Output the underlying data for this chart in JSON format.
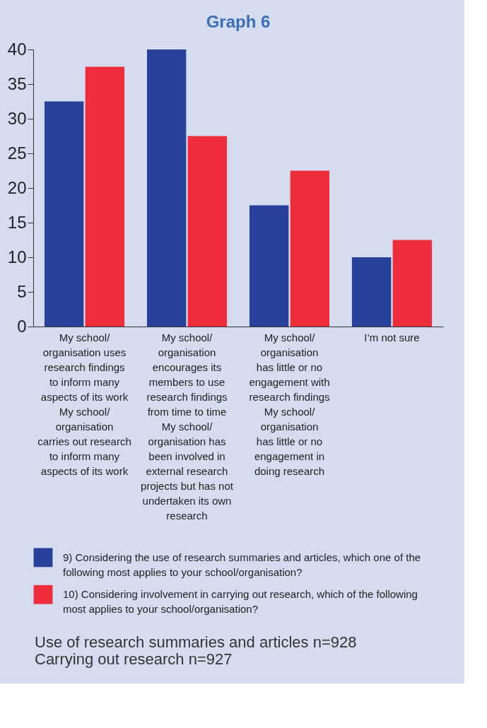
{
  "chart_data": {
    "type": "bar",
    "title": "Graph 6",
    "categories": [
      "My school/\norganisation uses\nresearch findings\nto inform many\naspects of its work\nMy school/\norganisation\ncarries out research\nto inform many\naspects of its work",
      "My school/\norganisation\nencourages its\nmembers to use\nresearch findings\nfrom time to time\nMy school/\norganisation has\nbeen involved in\nexternal research\nprojects but has not\nundertaken its own\nresearch",
      "My school/\norganisation\nhas little or no\nengagement with\nresearch findings\nMy school/\norganisation\nhas little or no\nengagement in\ndoing research",
      "I’m not sure"
    ],
    "series": [
      {
        "name": "9) Considering the use of research summaries and articles, which one of the\nfollowing most applies to your school/organisation?",
        "color": "#27409a",
        "values": [
          32.5,
          40,
          17.5,
          10
        ]
      },
      {
        "name": "10) Considering involvement in carrying out research, which of the following\nmost applies to your school/organisation?",
        "color": "#ee2d3b",
        "values": [
          37.5,
          27.5,
          22.5,
          12.5
        ]
      }
    ],
    "ylim": [
      0,
      40
    ],
    "yticks": [
      0,
      5,
      10,
      15,
      20,
      25,
      30,
      35,
      40
    ],
    "legend": "bottom",
    "annotations": [
      "Use of research summaries and articles n=928",
      "Carrying out research n=927"
    ]
  }
}
